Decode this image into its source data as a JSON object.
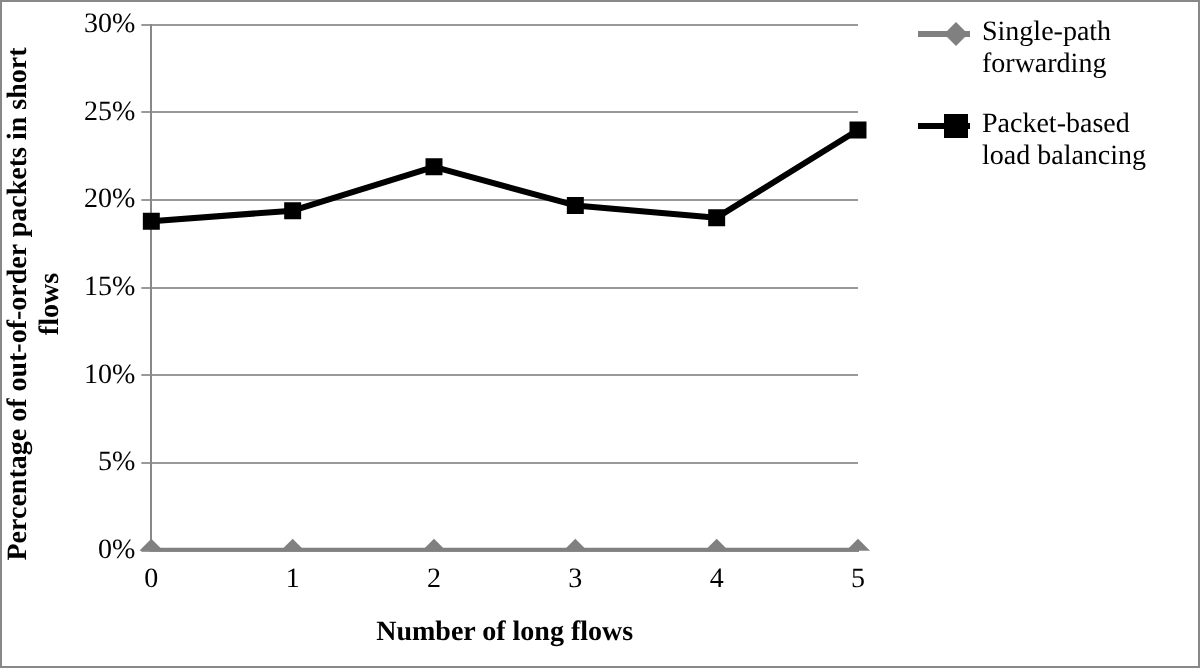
{
  "chart_data": {
    "type": "line",
    "xlabel": "Number of long flows",
    "ylabel": "Percentage of out-of-order packets in short flows",
    "categories": [
      "0",
      "1",
      "2",
      "3",
      "4",
      "5"
    ],
    "series": [
      {
        "name": "Single-path forwarding",
        "color": "#808080",
        "marker": "diamond",
        "values": [
          0,
          0,
          0,
          0,
          0,
          0
        ]
      },
      {
        "name": "Packet-based load balancing",
        "color": "#000000",
        "marker": "square",
        "values": [
          18.8,
          19.4,
          21.9,
          19.7,
          19.0,
          24.0
        ]
      }
    ],
    "ylim": [
      0,
      30
    ],
    "yticks": [
      {
        "value": 0,
        "label": "0%"
      },
      {
        "value": 5,
        "label": "5%"
      },
      {
        "value": 10,
        "label": "10%"
      },
      {
        "value": 15,
        "label": "15%"
      },
      {
        "value": 20,
        "label": "20%"
      },
      {
        "value": 25,
        "label": "25%"
      },
      {
        "value": 30,
        "label": "30%"
      }
    ],
    "grid": "y",
    "legend": "right"
  }
}
